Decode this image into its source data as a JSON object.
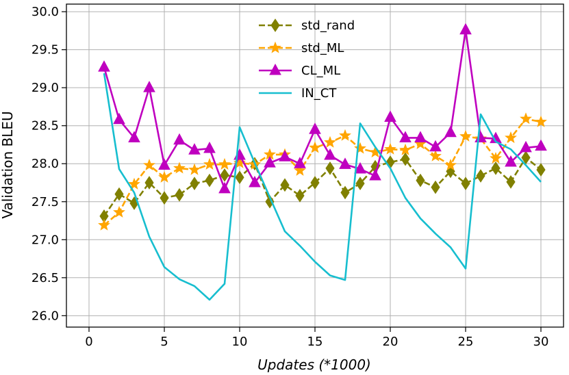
{
  "chart_data": {
    "type": "line",
    "title": "",
    "xlabel": "Updates (*1000)",
    "ylabel": "Validation BLEU",
    "xlim": [
      -1.5,
      31.5
    ],
    "ylim": [
      25.85,
      30.1
    ],
    "grid": true,
    "legend_position": "top-center",
    "xticks": [
      0,
      5,
      10,
      15,
      20,
      25,
      30
    ],
    "xtick_labels": [
      "0",
      "5",
      "10",
      "15",
      "20",
      "25",
      "30"
    ],
    "yticks": [
      26.0,
      26.5,
      27.0,
      27.5,
      28.0,
      28.5,
      29.0,
      29.5,
      30.0
    ],
    "ytick_labels": [
      "26.0",
      "26.5",
      "27.0",
      "27.5",
      "28.0",
      "28.5",
      "29.0",
      "29.5",
      "30.0"
    ],
    "x": [
      1,
      2,
      3,
      4,
      5,
      6,
      7,
      8,
      9,
      10,
      11,
      12,
      13,
      14,
      15,
      16,
      17,
      18,
      19,
      20,
      21,
      22,
      23,
      24,
      25,
      26,
      27,
      28,
      29,
      30
    ],
    "series": [
      {
        "name": "std_rand",
        "color": "#808000",
        "line": "dashed",
        "marker": "diamond",
        "values": [
          27.31,
          27.6,
          27.48,
          27.75,
          27.55,
          27.59,
          27.74,
          27.78,
          27.85,
          27.82,
          28.0,
          27.5,
          27.72,
          27.58,
          27.75,
          27.94,
          27.62,
          27.74,
          27.96,
          28.02,
          28.06,
          27.78,
          27.69,
          27.9,
          27.74,
          27.84,
          27.94,
          27.76,
          28.08,
          27.92
        ]
      },
      {
        "name": "std_ML",
        "color": "#FFA500",
        "line": "dashed",
        "marker": "star",
        "values": [
          27.19,
          27.36,
          27.73,
          27.98,
          27.82,
          27.94,
          27.92,
          27.99,
          27.99,
          28.01,
          27.99,
          28.12,
          28.12,
          27.91,
          28.21,
          28.28,
          28.37,
          28.2,
          28.15,
          28.19,
          28.18,
          28.26,
          28.1,
          27.98,
          28.36,
          28.33,
          28.07,
          28.34,
          28.59,
          28.55
        ]
      },
      {
        "name": "CL_ML",
        "color": "#BF00BF",
        "line": "solid",
        "marker": "triangle",
        "values": [
          29.27,
          28.58,
          28.34,
          29.0,
          27.98,
          28.31,
          28.18,
          28.2,
          27.67,
          28.11,
          27.75,
          28.01,
          28.09,
          28.0,
          28.45,
          28.11,
          27.99,
          27.93,
          27.84,
          28.61,
          28.34,
          28.34,
          28.22,
          28.41,
          29.76,
          28.34,
          28.33,
          28.02,
          28.21,
          28.23
        ]
      },
      {
        "name": "IN_CT",
        "color": "#17BECF",
        "line": "solid",
        "marker": "none",
        "values": [
          29.19,
          27.93,
          27.62,
          27.04,
          26.64,
          26.48,
          26.39,
          26.21,
          26.42,
          28.48,
          28.01,
          27.56,
          27.11,
          26.92,
          26.71,
          26.53,
          26.47,
          28.53,
          28.22,
          27.94,
          27.55,
          27.28,
          27.08,
          26.9,
          26.62,
          28.65,
          28.29,
          28.19,
          27.98,
          27.76
        ]
      }
    ]
  }
}
